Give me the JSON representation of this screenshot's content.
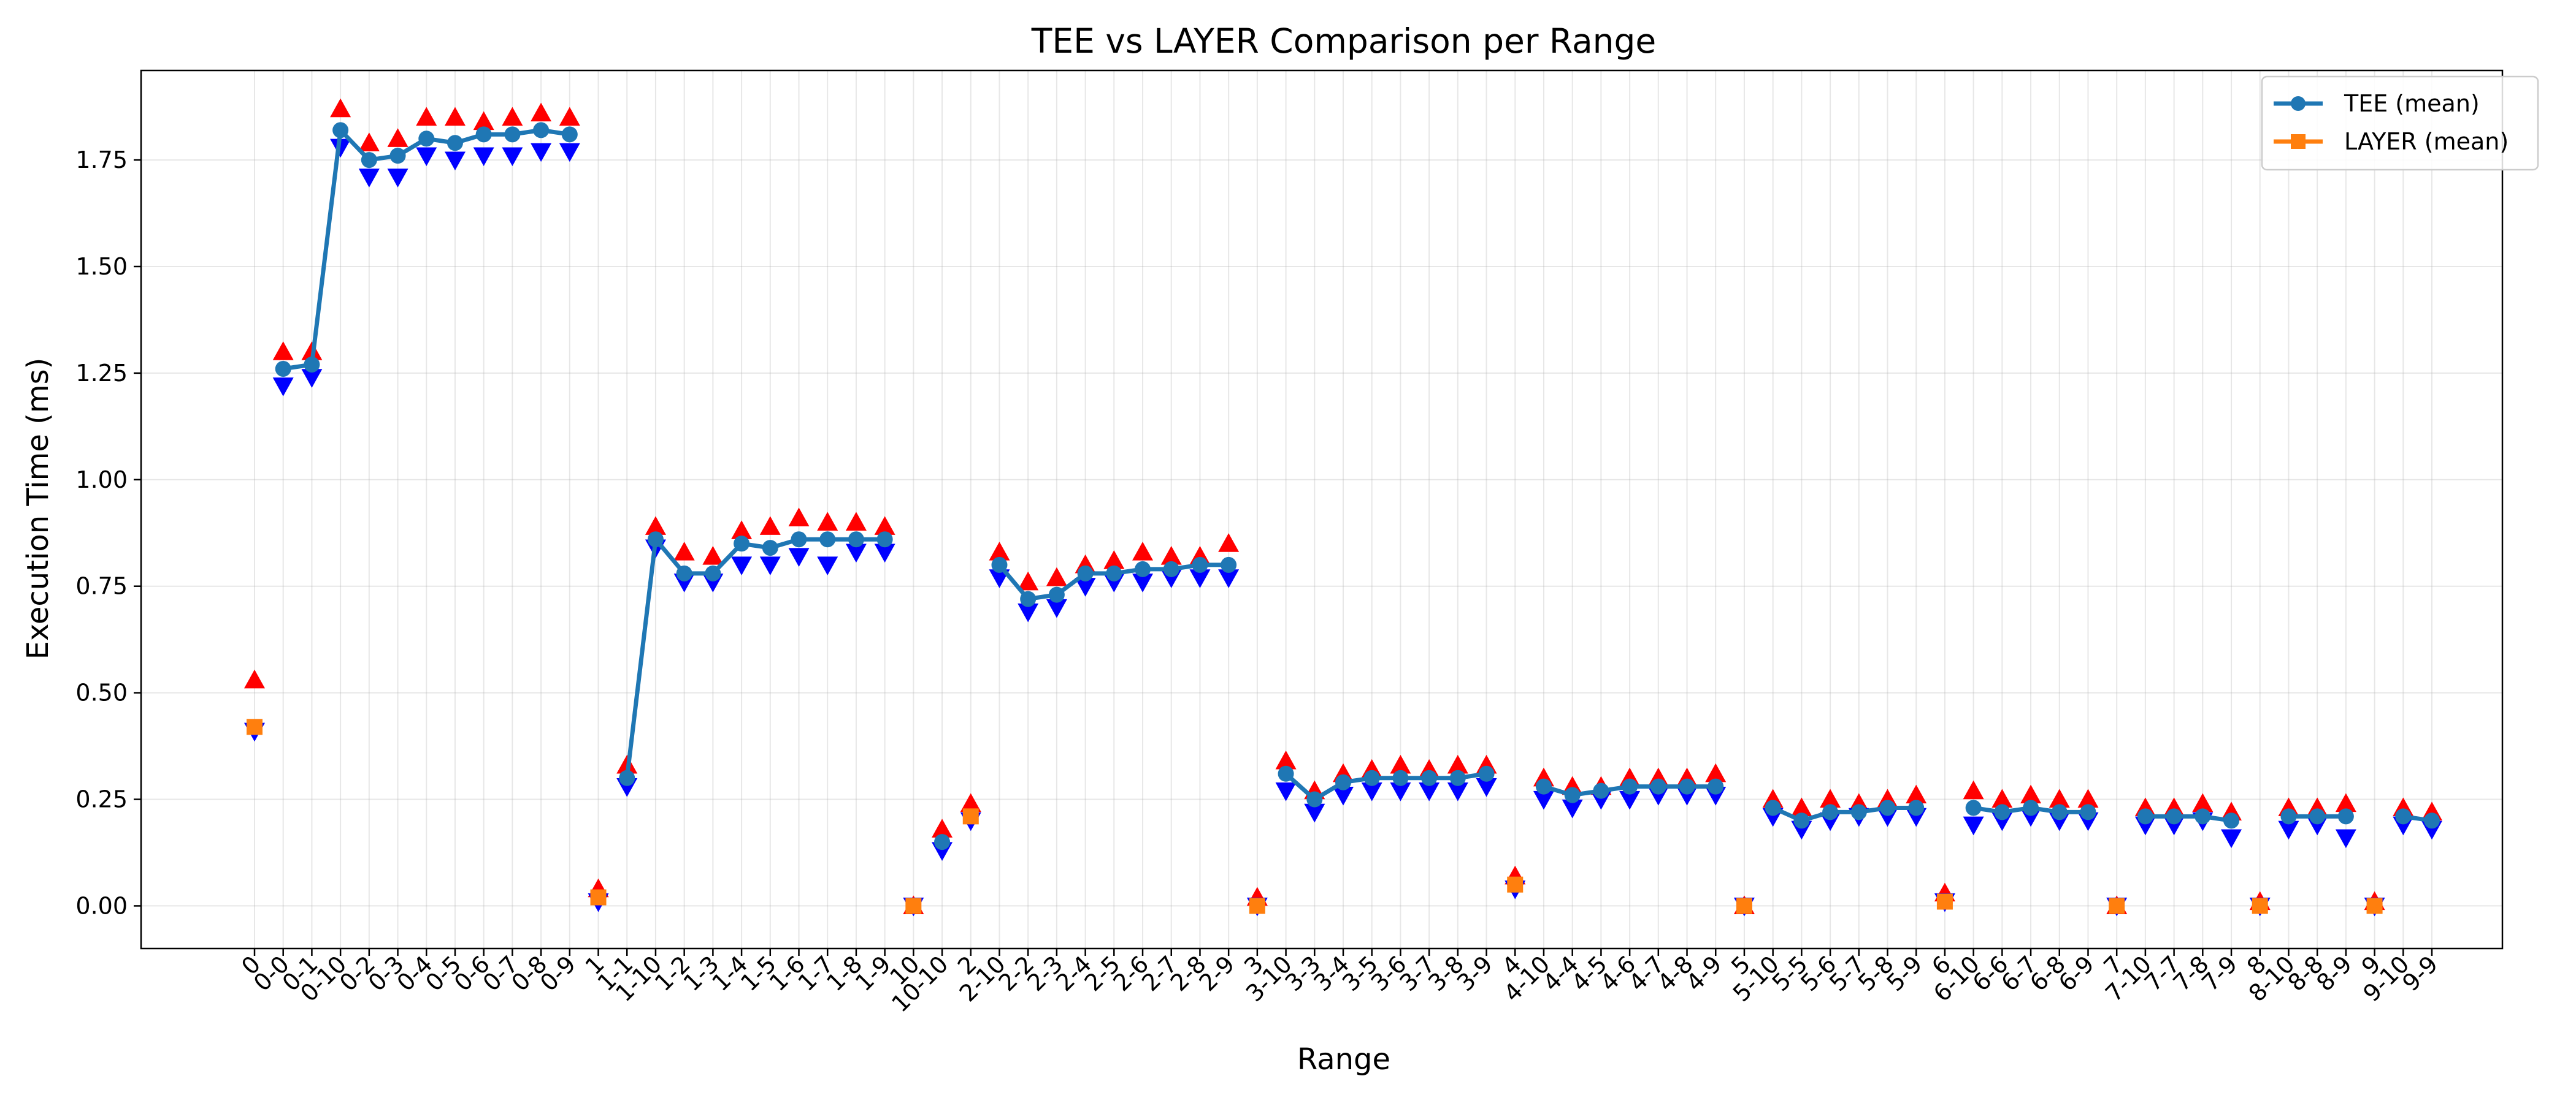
{
  "chart_data": {
    "type": "line",
    "title": "TEE vs LAYER Comparison per Range",
    "xlabel": "Range",
    "ylabel": "Execution Time (ms)",
    "ylim": [
      -0.1,
      1.96
    ],
    "yticks": [
      "0.00",
      "0.25",
      "0.50",
      "0.75",
      "1.00",
      "1.25",
      "1.50",
      "1.75"
    ],
    "grid": true,
    "legend_position": "top-right",
    "categories": [
      "0",
      "0-0",
      "0-1",
      "0-10",
      "0-2",
      "0-3",
      "0-4",
      "0-5",
      "0-6",
      "0-7",
      "0-8",
      "0-9",
      "1",
      "1-1",
      "1-10",
      "1-2",
      "1-3",
      "1-4",
      "1-5",
      "1-6",
      "1-7",
      "1-8",
      "1-9",
      "10",
      "10-10",
      "2",
      "2-10",
      "2-2",
      "2-3",
      "2-4",
      "2-5",
      "2-6",
      "2-7",
      "2-8",
      "2-9",
      "3",
      "3-10",
      "3-3",
      "3-4",
      "3-5",
      "3-6",
      "3-7",
      "3-8",
      "3-9",
      "4",
      "4-10",
      "4-4",
      "4-5",
      "4-6",
      "4-7",
      "4-8",
      "4-9",
      "5",
      "5-10",
      "5-5",
      "5-6",
      "5-7",
      "5-8",
      "5-9",
      "6",
      "6-10",
      "6-6",
      "6-7",
      "6-8",
      "6-9",
      "7",
      "7-10",
      "7-7",
      "7-8",
      "7-9",
      "8",
      "8-10",
      "8-8",
      "8-9",
      "9",
      "9-10",
      "9-9"
    ],
    "series": [
      {
        "name": "TEE (mean)",
        "color": "#1f77b4",
        "marker": "circle",
        "values": [
          null,
          1.26,
          1.27,
          1.82,
          1.75,
          1.76,
          1.8,
          1.79,
          1.81,
          1.81,
          1.82,
          1.81,
          null,
          0.3,
          0.86,
          0.78,
          0.78,
          0.85,
          0.84,
          0.86,
          0.86,
          0.86,
          0.86,
          null,
          0.15,
          null,
          0.8,
          0.72,
          0.73,
          0.78,
          0.78,
          0.79,
          0.79,
          0.8,
          0.8,
          null,
          0.31,
          0.25,
          0.29,
          0.3,
          0.3,
          0.3,
          0.3,
          0.31,
          null,
          0.28,
          0.26,
          0.27,
          0.28,
          0.28,
          0.28,
          0.28,
          null,
          0.23,
          0.2,
          0.22,
          0.22,
          0.23,
          0.23,
          null,
          0.23,
          0.22,
          0.23,
          0.22,
          0.22,
          null,
          0.21,
          0.21,
          0.21,
          0.2,
          null,
          0.21,
          0.21,
          0.21,
          null,
          0.21,
          0.2
        ],
        "upper": [
          null,
          1.3,
          1.3,
          1.87,
          1.79,
          1.8,
          1.85,
          1.85,
          1.84,
          1.85,
          1.86,
          1.85,
          null,
          0.33,
          0.89,
          0.83,
          0.82,
          0.88,
          0.89,
          0.91,
          0.9,
          0.9,
          0.89,
          null,
          0.18,
          null,
          0.83,
          0.76,
          0.77,
          0.8,
          0.81,
          0.83,
          0.82,
          0.82,
          0.85,
          null,
          0.34,
          0.27,
          0.31,
          0.32,
          0.33,
          0.32,
          0.33,
          0.33,
          null,
          0.3,
          0.28,
          0.28,
          0.3,
          0.3,
          0.3,
          0.31,
          null,
          0.25,
          0.23,
          0.25,
          0.24,
          0.25,
          0.26,
          null,
          0.27,
          0.25,
          0.26,
          0.25,
          0.25,
          null,
          0.23,
          0.23,
          0.24,
          0.22,
          null,
          0.23,
          0.23,
          0.24,
          null,
          0.23,
          0.22
        ],
        "lower": [
          null,
          1.22,
          1.24,
          1.78,
          1.71,
          1.71,
          1.76,
          1.75,
          1.76,
          1.76,
          1.77,
          1.77,
          null,
          0.28,
          0.84,
          0.76,
          0.76,
          0.8,
          0.8,
          0.82,
          0.8,
          0.83,
          0.83,
          null,
          0.13,
          null,
          0.77,
          0.69,
          0.7,
          0.75,
          0.76,
          0.76,
          0.77,
          0.77,
          0.77,
          null,
          0.27,
          0.22,
          0.26,
          0.27,
          0.27,
          0.27,
          0.27,
          0.28,
          null,
          0.25,
          0.23,
          0.25,
          0.25,
          0.26,
          0.26,
          0.26,
          null,
          0.21,
          0.18,
          0.2,
          0.21,
          0.21,
          0.21,
          null,
          0.19,
          0.2,
          0.21,
          0.2,
          0.2,
          null,
          0.19,
          0.19,
          0.2,
          0.16,
          null,
          0.18,
          0.19,
          0.16,
          null,
          0.19,
          0.18
        ]
      },
      {
        "name": "LAYER (mean)",
        "color": "#ff7f0e",
        "marker": "square",
        "values": [
          0.42,
          null,
          null,
          null,
          null,
          null,
          null,
          null,
          null,
          null,
          null,
          null,
          0.02,
          null,
          null,
          null,
          null,
          null,
          null,
          null,
          null,
          null,
          null,
          0.0,
          null,
          0.21,
          null,
          null,
          null,
          null,
          null,
          null,
          null,
          null,
          null,
          0.0,
          null,
          null,
          null,
          null,
          null,
          null,
          null,
          null,
          0.05,
          null,
          null,
          null,
          null,
          null,
          null,
          null,
          0.0,
          null,
          null,
          null,
          null,
          null,
          null,
          0.01,
          null,
          null,
          null,
          null,
          null,
          0.0,
          null,
          null,
          null,
          null,
          0.0,
          null,
          null,
          null,
          0.0,
          null,
          null
        ],
        "upper": [
          0.53,
          null,
          null,
          null,
          null,
          null,
          null,
          null,
          null,
          null,
          null,
          null,
          0.04,
          null,
          null,
          null,
          null,
          null,
          null,
          null,
          null,
          null,
          null,
          0.0,
          null,
          0.24,
          null,
          null,
          null,
          null,
          null,
          null,
          null,
          null,
          null,
          0.02,
          null,
          null,
          null,
          null,
          null,
          null,
          null,
          null,
          0.07,
          null,
          null,
          null,
          null,
          null,
          null,
          null,
          0.0,
          null,
          null,
          null,
          null,
          null,
          null,
          0.03,
          null,
          null,
          null,
          null,
          null,
          0.0,
          null,
          null,
          null,
          null,
          0.01,
          null,
          null,
          null,
          0.01,
          null,
          null
        ],
        "lower": [
          0.41,
          null,
          null,
          null,
          null,
          null,
          null,
          null,
          null,
          null,
          null,
          null,
          0.01,
          null,
          null,
          null,
          null,
          null,
          null,
          null,
          null,
          null,
          null,
          0.0,
          null,
          0.2,
          null,
          null,
          null,
          null,
          null,
          null,
          null,
          null,
          null,
          0.0,
          null,
          null,
          null,
          null,
          null,
          null,
          null,
          null,
          0.04,
          null,
          null,
          null,
          null,
          null,
          null,
          null,
          0.0,
          null,
          null,
          null,
          null,
          null,
          null,
          0.01,
          null,
          null,
          null,
          null,
          null,
          0.0,
          null,
          null,
          null,
          null,
          0.0,
          null,
          null,
          null,
          0.0,
          null,
          null
        ]
      }
    ],
    "upper_marker_color": "#ff0000",
    "lower_marker_color": "#0000ff"
  }
}
